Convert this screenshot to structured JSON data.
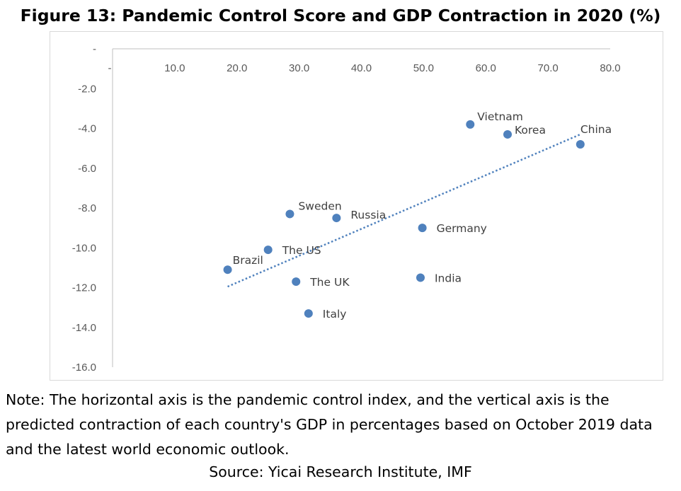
{
  "title": "Figure 13: Pandemic Control Score and GDP Contraction in 2020 (%)",
  "note": "Note: The horizontal axis is the pandemic control index, and the vertical axis is the predicted contraction of each country's GDP in percentages based on October 2019 data and the latest world economic outlook.",
  "source": "Source: Yicai Research Institute, IMF",
  "chart_data": {
    "type": "scatter",
    "xlim": [
      0,
      80
    ],
    "ylim": [
      -16,
      0
    ],
    "x_ticks": [
      "-",
      "10.0",
      "20.0",
      "30.0",
      "40.0",
      "50.0",
      "60.0",
      "70.0",
      "80.0"
    ],
    "y_ticks": [
      "-",
      "-2.0",
      "-4.0",
      "-6.0",
      "-8.0",
      "-10.0",
      "-12.0",
      "-14.0",
      "-16.0"
    ],
    "grid": false,
    "x_axis_position": "top",
    "colors": {
      "points": "#4f81bd",
      "trendline": "#4f81bd"
    },
    "points": [
      {
        "label": "Vietnam",
        "x": 57.5,
        "y": -3.8
      },
      {
        "label": "Korea",
        "x": 63.5,
        "y": -4.3
      },
      {
        "label": "China",
        "x": 75.2,
        "y": -4.8
      },
      {
        "label": "Sweden",
        "x": 28.5,
        "y": -8.3
      },
      {
        "label": "Russia",
        "x": 36.0,
        "y": -8.5
      },
      {
        "label": "Germany",
        "x": 49.8,
        "y": -9.0
      },
      {
        "label": "The US",
        "x": 25.0,
        "y": -10.1
      },
      {
        "label": "Brazil",
        "x": 18.5,
        "y": -11.1
      },
      {
        "label": "The UK",
        "x": 29.5,
        "y": -11.7
      },
      {
        "label": "India",
        "x": 49.5,
        "y": -11.5
      },
      {
        "label": "Italy",
        "x": 31.5,
        "y": -13.3
      }
    ],
    "trendline": {
      "type": "linear",
      "x_start": 18.5,
      "x_end": 75.2,
      "y_start": -11.95,
      "y_end": -4.3
    }
  }
}
